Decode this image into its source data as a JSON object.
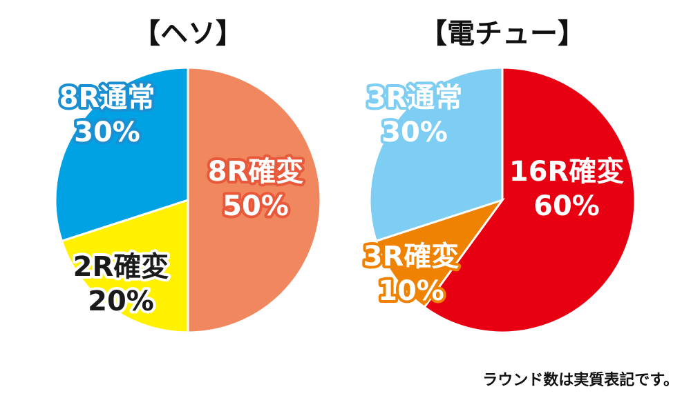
{
  "chart_data": [
    {
      "type": "pie",
      "title": "【ヘソ】",
      "slices": [
        {
          "label": "8R確変",
          "value": 50,
          "value_label": "50%",
          "color": "#f0875e",
          "label_color": "#ffffff",
          "outline_color": "#e8583a"
        },
        {
          "label": "2R確変",
          "value": 20,
          "value_label": "20%",
          "color": "#fff100",
          "label_color": "#1a1a1a",
          "outline_color": "#ffffff"
        },
        {
          "label": "8R通常",
          "value": 30,
          "value_label": "30%",
          "color": "#00a2e4",
          "label_color": "#ffffff",
          "outline_color": "#1a8fd1"
        }
      ]
    },
    {
      "type": "pie",
      "title": "【電チュー】",
      "slices": [
        {
          "label": "16R確変",
          "value": 60,
          "value_label": "60%",
          "color": "#e60012",
          "label_color": "#ffffff",
          "outline_color": "#e60012"
        },
        {
          "label": "3R確変",
          "value": 10,
          "value_label": "10%",
          "color": "#ef8200",
          "label_color": "#ffffff",
          "outline_color": "#ef8200"
        },
        {
          "label": "3R通常",
          "value": 30,
          "value_label": "30%",
          "color": "#7ecef4",
          "label_color": "#ffffff",
          "outline_color": "#7ecef4"
        }
      ]
    }
  ],
  "footnote": "ラウンド数は実質表記です。"
}
